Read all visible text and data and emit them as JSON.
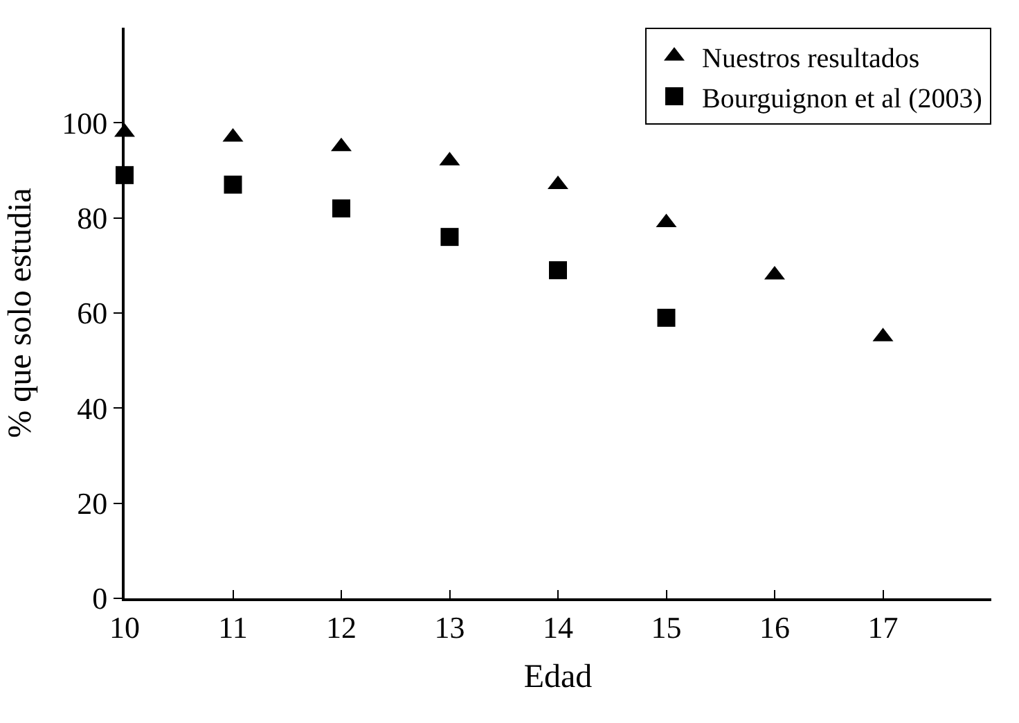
{
  "chart_data": {
    "type": "scatter",
    "xlabel": "Edad",
    "ylabel": "% que solo estudia",
    "x": [
      10,
      11,
      12,
      13,
      14,
      15,
      16,
      17
    ],
    "series": [
      {
        "name": "Nuestros resultados",
        "color": "#000000",
        "marker": "triangle",
        "values": [
          98,
          97,
          95,
          92,
          87,
          79,
          68,
          55
        ]
      },
      {
        "name": "Bourguignon et al (2003)",
        "color": "#000000",
        "marker": "square",
        "values": [
          89,
          87,
          82,
          76,
          69,
          59,
          null,
          null
        ]
      }
    ],
    "xlim": [
      10,
      18
    ],
    "ylim": [
      0,
      120
    ],
    "xticks": [
      10,
      11,
      12,
      13,
      14,
      15,
      16,
      17
    ],
    "yticks": [
      0,
      20,
      40,
      60,
      80,
      100
    ],
    "grid": false,
    "legend": "top right"
  }
}
